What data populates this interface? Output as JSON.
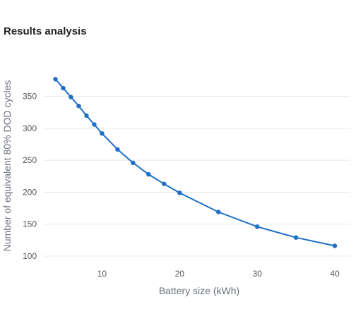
{
  "page": {
    "title": "Results analysis"
  },
  "chart_data": {
    "type": "line",
    "xlabel": "Battery size (kWh)",
    "ylabel": "Number of equivalent 80% DOD cycles",
    "x_ticks": [
      "10",
      "20",
      "30",
      "40"
    ],
    "y_ticks": [
      "100",
      "150",
      "200",
      "250",
      "300",
      "350"
    ],
    "xlim": [
      2.5,
      42
    ],
    "ylim": [
      90,
      385
    ],
    "grid": true,
    "legend": "none",
    "series": [
      {
        "color": "#1f6fc6",
        "x": [
          4,
          5,
          6,
          7,
          8,
          9,
          10,
          12,
          14,
          16,
          18,
          20,
          25,
          30,
          35,
          40
        ],
        "y": [
          377,
          363,
          349,
          335,
          320,
          306,
          292,
          267,
          246,
          228,
          213,
          199,
          169,
          146,
          129,
          116
        ]
      }
    ]
  }
}
